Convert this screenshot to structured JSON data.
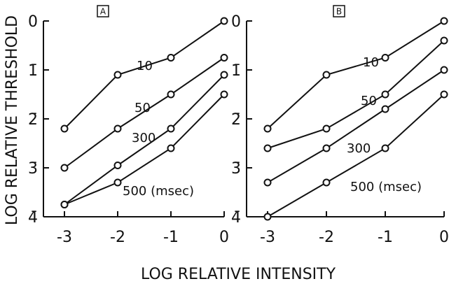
{
  "chart_data": [
    {
      "type": "line",
      "panel": "A",
      "ylabel": "LOG RELATIVE THRESHOLD",
      "xlabel": "LOG RELATIVE INTENSITY",
      "x": [
        -3,
        -2,
        -1,
        0
      ],
      "xlim": [
        -3,
        0
      ],
      "xticks": [
        -3,
        -2,
        -1,
        0
      ],
      "ylim": [
        -4,
        0
      ],
      "yticks": [
        0,
        {
          "value": -1,
          "label": "1̄"
        },
        {
          "value": -2,
          "label": "2̄"
        },
        {
          "value": -3,
          "label": "3̄"
        },
        {
          "value": -4,
          "label": "4̄"
        }
      ],
      "series": [
        {
          "name": "10",
          "color": "#111",
          "values": [
            -2.2,
            -1.1,
            -0.75,
            0
          ]
        },
        {
          "name": "50",
          "color": "#111",
          "values": [
            -3.0,
            -2.2,
            -1.5,
            -0.75
          ]
        },
        {
          "name": "300",
          "color": "#111",
          "values": [
            -3.75,
            -2.95,
            -2.2,
            -1.1
          ]
        },
        {
          "name": "500 (msec)",
          "color": "#111",
          "values": [
            -3.75,
            -3.3,
            -2.6,
            -1.5
          ]
        }
      ]
    },
    {
      "type": "line",
      "panel": "B",
      "x": [
        -3,
        -2,
        -1,
        0
      ],
      "xlim": [
        -3,
        0
      ],
      "xticks": [
        -3,
        -2,
        -1,
        0
      ],
      "ylim": [
        -4,
        0
      ],
      "yticks": [
        0,
        {
          "value": -1,
          "label": "1̄"
        },
        {
          "value": -2,
          "label": "2̄"
        },
        {
          "value": -3,
          "label": "3̄"
        },
        {
          "value": -4,
          "label": "4̄"
        }
      ],
      "series": [
        {
          "name": "10",
          "color": "#111",
          "values": [
            -2.2,
            -1.1,
            -0.75,
            0
          ]
        },
        {
          "name": "50",
          "color": "#111",
          "values": [
            -2.6,
            -2.2,
            -1.5,
            -0.4
          ]
        },
        {
          "name": "300",
          "color": "#111",
          "values": [
            -3.3,
            -2.6,
            -1.8,
            -1.0
          ]
        },
        {
          "name": "500 (msec)",
          "color": "#111",
          "values": [
            -4.0,
            -3.3,
            -2.6,
            -1.5
          ]
        }
      ]
    }
  ]
}
